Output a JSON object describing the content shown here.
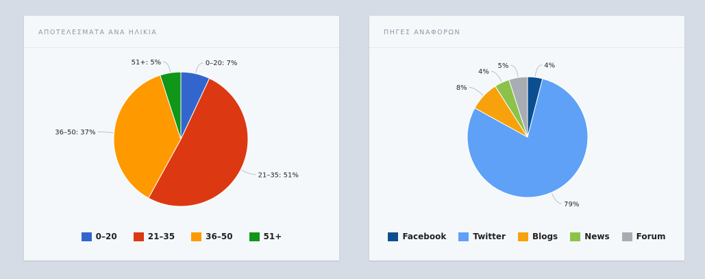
{
  "panels": {
    "left": {
      "title": "ΑΠΟΤΕΛΕΣΜΑΤΑ ΑΝΑ ΗΛΙΚΙΑ"
    },
    "right": {
      "title": "ΠΗΓΕΣ ΑΝΑΦΟΡΩΝ"
    }
  },
  "chart_data": [
    {
      "type": "pie",
      "title": "ΑΠΟΤΕΛΕΣΜΑΤΑ ΑΝΑ ΗΛΙΚΙΑ",
      "label_style": "name-percent",
      "legend_position": "bottom",
      "slices": [
        {
          "name": "0–20",
          "value": 7,
          "label": "0–20: 7%",
          "color": "#3366cc"
        },
        {
          "name": "21–35",
          "value": 51,
          "label": "21–35: 51%",
          "color": "#dc3912"
        },
        {
          "name": "36–50",
          "value": 37,
          "label": "36–50: 37%",
          "color": "#ff9900"
        },
        {
          "name": "51+",
          "value": 5,
          "label": "51+: 5%",
          "color": "#109618"
        }
      ]
    },
    {
      "type": "pie",
      "title": "ΠΗΓΕΣ ΑΝΑΦΟΡΩΝ",
      "label_style": "percent",
      "legend_position": "bottom",
      "slices": [
        {
          "name": "Facebook",
          "value": 4,
          "label": "4%",
          "color": "#0b4f91"
        },
        {
          "name": "Twitter",
          "value": 79,
          "label": "79%",
          "color": "#5ea1f7"
        },
        {
          "name": "Blogs",
          "value": 8,
          "label": "8%",
          "color": "#f7a20c"
        },
        {
          "name": "News",
          "value": 4,
          "label": "4%",
          "color": "#8bc34a"
        },
        {
          "name": "Forum",
          "value": 5,
          "label": "5%",
          "color": "#a8adb4"
        }
      ]
    }
  ]
}
